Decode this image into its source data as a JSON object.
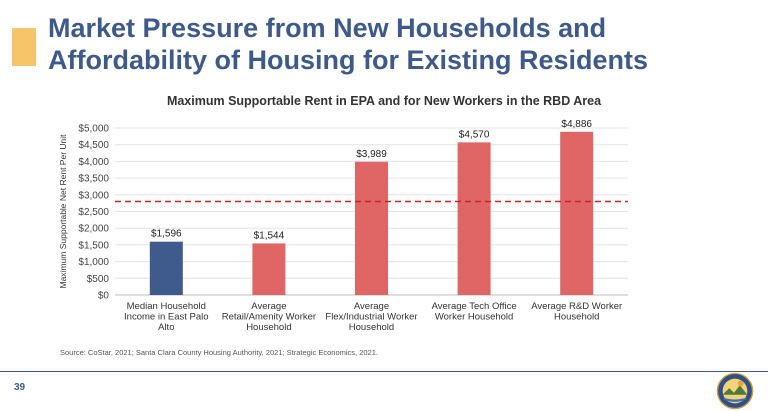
{
  "slide": {
    "title_line1": "Market Pressure from New Households and",
    "title_line2": "Affordability of Housing for Existing Residents",
    "source": "Source: CoStar, 2021; Santa Clara County Housing Authority, 2021; Strategic Economics, 2021.",
    "page_number": "39",
    "accent_color": "#f6c56a",
    "title_color": "#3d5a8a"
  },
  "chart_data": {
    "type": "bar",
    "title": "Maximum Supportable Rent in EPA and for New Workers in the RBD Area",
    "ylabel": "Maximum Supportable Net Rent Per Unit",
    "xlabel": "",
    "ylim": [
      0,
      5000
    ],
    "yticks": [
      "$0",
      "$500",
      "$1,000",
      "$1,500",
      "$2,000",
      "$2,500",
      "$3,000",
      "$3,500",
      "$4,000",
      "$4,500",
      "$5,000"
    ],
    "ytick_values": [
      0,
      500,
      1000,
      1500,
      2000,
      2500,
      3000,
      3500,
      4000,
      4500,
      5000
    ],
    "grid": true,
    "categories": [
      [
        "Median Household",
        "Income in East Palo",
        "Alto"
      ],
      [
        "Average",
        "Retail/Amenity Worker",
        "Household"
      ],
      [
        "Average",
        "Flex/Industrial Worker",
        "Household"
      ],
      [
        "Average Tech Office",
        "Worker Household"
      ],
      [
        "Average R&D Worker",
        "Household"
      ]
    ],
    "values": [
      1596,
      1544,
      3989,
      4570,
      4886
    ],
    "data_labels": [
      "$1,596",
      "$1,544",
      "$3,989",
      "$4,570",
      "$4,886"
    ],
    "colors": [
      "#3f5a8c",
      "#e06666",
      "#e06666",
      "#e06666",
      "#e06666"
    ],
    "reference_line": {
      "value": 2800,
      "color": "#cc2222",
      "style": "dashed"
    }
  }
}
